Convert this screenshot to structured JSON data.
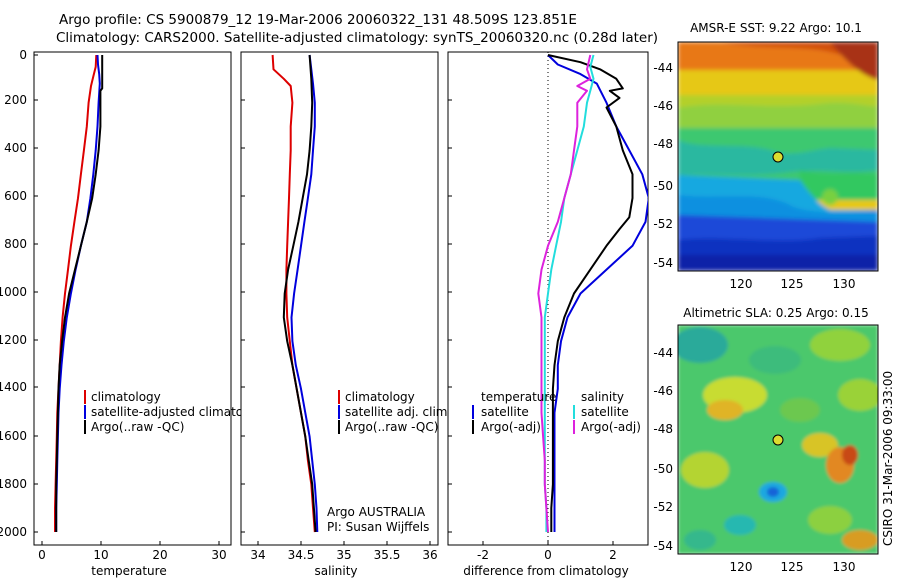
{
  "header": {
    "title_line1": "Argo profile: CS 5900879_12 19-Mar-2006 20060322_131 48.509S 123.851E",
    "title_line2": "Climatology: CARS2000. Satellite-adjusted climatology: synTS_20060320.nc (0.28d later)"
  },
  "footer": {
    "credit": "CSIRO 31-Mar-2006 09:33:00",
    "float_owner_line1": "Argo AUSTRALIA",
    "float_owner_line2": "PI: Susan Wijffels"
  },
  "colors": {
    "red": "#dd0000",
    "blue": "#0000dd",
    "black": "#000000",
    "cyan": "#22dddd",
    "magenta": "#dd22dd"
  },
  "chart_data": [
    {
      "type": "line",
      "id": "temperature",
      "xlabel": "temperature",
      "ylabel": "",
      "xlim": [
        -2,
        32
      ],
      "ylim": [
        0,
        2080
      ],
      "x_ticks": [
        "0",
        "10",
        "20",
        "30"
      ],
      "y_ticks": [
        "0",
        "200",
        "400",
        "600",
        "800",
        "1000",
        "1200",
        "1400",
        "1600",
        "1800",
        "2000"
      ],
      "legend": {
        "position": "lower-right",
        "entries": [
          "climatology",
          "satellite-adjusted climatology",
          "Argo(..raw -QC)"
        ]
      },
      "series": [
        {
          "name": "climatology",
          "color": "red",
          "points": [
            [
              9.2,
              0
            ],
            [
              9.1,
              50
            ],
            [
              8.7,
              90
            ],
            [
              8.3,
              130
            ],
            [
              7.9,
              200
            ],
            [
              7.6,
              300
            ],
            [
              7.1,
              400
            ],
            [
              6.6,
              500
            ],
            [
              6.1,
              600
            ],
            [
              5.5,
              700
            ],
            [
              4.9,
              800
            ],
            [
              4.4,
              900
            ],
            [
              3.9,
              1000
            ],
            [
              3.5,
              1100
            ],
            [
              3.2,
              1200
            ],
            [
              3.0,
              1300
            ],
            [
              2.8,
              1400
            ],
            [
              2.6,
              1500
            ],
            [
              2.5,
              1600
            ],
            [
              2.4,
              1700
            ],
            [
              2.3,
              1800
            ],
            [
              2.2,
              1900
            ],
            [
              2.2,
              2000
            ]
          ]
        },
        {
          "name": "satellite-adjusted climatology",
          "color": "blue",
          "points": [
            [
              9.4,
              0
            ],
            [
              9.5,
              40
            ],
            [
              9.7,
              80
            ],
            [
              9.8,
              120
            ],
            [
              9.6,
              200
            ],
            [
              9.4,
              300
            ],
            [
              9.1,
              400
            ],
            [
              8.7,
              500
            ],
            [
              8.2,
              600
            ],
            [
              7.6,
              700
            ],
            [
              6.6,
              800
            ],
            [
              5.7,
              900
            ],
            [
              4.9,
              1000
            ],
            [
              4.2,
              1100
            ],
            [
              3.7,
              1200
            ],
            [
              3.3,
              1300
            ],
            [
              3.0,
              1400
            ],
            [
              2.8,
              1500
            ],
            [
              2.7,
              1600
            ],
            [
              2.6,
              1700
            ],
            [
              2.5,
              1800
            ],
            [
              2.4,
              1900
            ],
            [
              2.4,
              2000
            ]
          ]
        },
        {
          "name": "Argo(..raw -QC)",
          "color": "black",
          "points": [
            [
              10.2,
              0
            ],
            [
              10.2,
              140
            ],
            [
              9.9,
              150
            ],
            [
              9.9,
              300
            ],
            [
              9.6,
              400
            ],
            [
              9.1,
              500
            ],
            [
              8.5,
              600
            ],
            [
              7.6,
              700
            ],
            [
              6.6,
              800
            ],
            [
              5.6,
              900
            ],
            [
              4.6,
              1000
            ],
            [
              3.9,
              1100
            ],
            [
              3.4,
              1200
            ],
            [
              3.0,
              1300
            ],
            [
              2.8,
              1400
            ],
            [
              2.7,
              1500
            ],
            [
              2.6,
              1600
            ],
            [
              2.5,
              1700
            ],
            [
              2.4,
              1800
            ],
            [
              2.4,
              1900
            ],
            [
              2.4,
              2000
            ]
          ]
        }
      ]
    },
    {
      "type": "line",
      "id": "salinity",
      "xlabel": "salinity",
      "ylabel": "",
      "xlim": [
        33.8,
        36.1
      ],
      "ylim": [
        0,
        2080
      ],
      "x_ticks": [
        "34",
        "34.5",
        "35",
        "35.5",
        "36"
      ],
      "legend": {
        "position": "lower-right",
        "entries": [
          "climatology",
          "satellite adj. clim.",
          "Argo(..raw -QC)"
        ]
      },
      "series": [
        {
          "name": "climatology",
          "color": "red",
          "points": [
            [
              34.17,
              0
            ],
            [
              34.18,
              60
            ],
            [
              34.3,
              100
            ],
            [
              34.38,
              130
            ],
            [
              34.4,
              200
            ],
            [
              34.38,
              300
            ],
            [
              34.38,
              400
            ],
            [
              34.37,
              500
            ],
            [
              34.36,
              600
            ],
            [
              34.35,
              700
            ],
            [
              34.34,
              800
            ],
            [
              34.33,
              900
            ],
            [
              34.33,
              1000
            ],
            [
              34.34,
              1100
            ],
            [
              34.37,
              1200
            ],
            [
              34.4,
              1300
            ],
            [
              34.45,
              1400
            ],
            [
              34.5,
              1500
            ],
            [
              34.55,
              1600
            ],
            [
              34.58,
              1700
            ],
            [
              34.62,
              1800
            ],
            [
              34.64,
              1900
            ],
            [
              34.66,
              2000
            ]
          ]
        },
        {
          "name": "satellite adj. clim.",
          "color": "blue",
          "points": [
            [
              34.6,
              0
            ],
            [
              34.62,
              60
            ],
            [
              34.64,
              120
            ],
            [
              34.66,
              200
            ],
            [
              34.66,
              300
            ],
            [
              34.64,
              400
            ],
            [
              34.62,
              500
            ],
            [
              34.58,
              600
            ],
            [
              34.54,
              700
            ],
            [
              34.5,
              800
            ],
            [
              34.46,
              900
            ],
            [
              34.42,
              1000
            ],
            [
              34.39,
              1100
            ],
            [
              34.4,
              1200
            ],
            [
              34.44,
              1300
            ],
            [
              34.5,
              1400
            ],
            [
              34.55,
              1500
            ],
            [
              34.6,
              1600
            ],
            [
              34.63,
              1700
            ],
            [
              34.66,
              1800
            ],
            [
              34.68,
              1900
            ],
            [
              34.69,
              2000
            ]
          ]
        },
        {
          "name": "Argo(..raw -QC)",
          "color": "black",
          "points": [
            [
              34.6,
              0
            ],
            [
              34.62,
              100
            ],
            [
              34.63,
              200
            ],
            [
              34.62,
              300
            ],
            [
              34.6,
              400
            ],
            [
              34.57,
              500
            ],
            [
              34.52,
              600
            ],
            [
              34.47,
              700
            ],
            [
              34.41,
              800
            ],
            [
              34.35,
              900
            ],
            [
              34.31,
              1000
            ],
            [
              34.3,
              1100
            ],
            [
              34.34,
              1200
            ],
            [
              34.4,
              1300
            ],
            [
              34.45,
              1400
            ],
            [
              34.5,
              1500
            ],
            [
              34.55,
              1600
            ],
            [
              34.59,
              1700
            ],
            [
              34.63,
              1800
            ],
            [
              34.65,
              1900
            ],
            [
              34.67,
              2000
            ]
          ]
        }
      ]
    },
    {
      "type": "line",
      "id": "difference",
      "xlabel": "difference from climatology",
      "ylabel": "",
      "xlim": [
        -3.1,
        3.1
      ],
      "ylim": [
        0,
        2080
      ],
      "x_ticks": [
        "-2",
        "0",
        "2"
      ],
      "zero_line": "dotted",
      "legend": {
        "position": "lower-center",
        "entries": [
          "temperature",
          "satellite",
          "Argo(-adj)",
          "salinity",
          "satellite",
          "Argo(-adj)"
        ]
      },
      "series": [
        {
          "name": "temperature satellite",
          "color": "blue",
          "points": [
            [
              0.0,
              0
            ],
            [
              0.3,
              40
            ],
            [
              1.0,
              80
            ],
            [
              1.5,
              120
            ],
            [
              1.8,
              200
            ],
            [
              2.1,
              300
            ],
            [
              2.5,
              400
            ],
            [
              2.9,
              500
            ],
            [
              3.1,
              600
            ],
            [
              3.0,
              700
            ],
            [
              2.6,
              800
            ],
            [
              1.8,
              900
            ],
            [
              1.0,
              1000
            ],
            [
              0.6,
              1100
            ],
            [
              0.4,
              1200
            ],
            [
              0.3,
              1300
            ],
            [
              0.3,
              1400
            ],
            [
              0.2,
              1500
            ],
            [
              0.2,
              1600
            ],
            [
              0.2,
              1700
            ],
            [
              0.2,
              1800
            ],
            [
              0.2,
              1900
            ],
            [
              0.2,
              2000
            ]
          ]
        },
        {
          "name": "temperature Argo(-adj)",
          "color": "black",
          "points": [
            [
              0.0,
              0
            ],
            [
              1.0,
              30
            ],
            [
              1.6,
              60
            ],
            [
              2.1,
              100
            ],
            [
              2.3,
              140
            ],
            [
              1.9,
              150
            ],
            [
              2.2,
              180
            ],
            [
              1.8,
              220
            ],
            [
              2.1,
              300
            ],
            [
              2.3,
              400
            ],
            [
              2.6,
              500
            ],
            [
              2.6,
              600
            ],
            [
              2.5,
              680
            ],
            [
              2.2,
              730
            ],
            [
              1.8,
              800
            ],
            [
              1.3,
              900
            ],
            [
              0.8,
              1000
            ],
            [
              0.5,
              1100
            ],
            [
              0.3,
              1200
            ],
            [
              0.2,
              1300
            ],
            [
              0.15,
              1400
            ],
            [
              0.15,
              1500
            ],
            [
              0.15,
              1600
            ],
            [
              0.15,
              1700
            ],
            [
              0.15,
              1800
            ],
            [
              0.1,
              1900
            ],
            [
              0.1,
              2000
            ]
          ]
        },
        {
          "name": "salinity satellite",
          "color": "cyan",
          "points": [
            [
              1.4,
              0
            ],
            [
              1.3,
              50
            ],
            [
              1.4,
              100
            ],
            [
              1.3,
              150
            ],
            [
              1.2,
              200
            ],
            [
              1.1,
              300
            ],
            [
              0.9,
              400
            ],
            [
              0.7,
              500
            ],
            [
              0.5,
              600
            ],
            [
              0.4,
              700
            ],
            [
              0.25,
              800
            ],
            [
              0.1,
              900
            ],
            [
              0.0,
              1000
            ],
            [
              -0.1,
              1100
            ],
            [
              -0.1,
              1200
            ],
            [
              -0.1,
              1300
            ],
            [
              -0.1,
              1400
            ],
            [
              -0.1,
              1500
            ],
            [
              -0.1,
              1600
            ],
            [
              -0.1,
              1700
            ],
            [
              -0.1,
              1800
            ],
            [
              -0.05,
              1900
            ],
            [
              -0.05,
              2000
            ]
          ]
        },
        {
          "name": "salinity Argo(-adj)",
          "color": "magenta",
          "points": [
            [
              1.3,
              0
            ],
            [
              1.2,
              60
            ],
            [
              1.3,
              100
            ],
            [
              0.9,
              130
            ],
            [
              1.2,
              150
            ],
            [
              0.9,
              200
            ],
            [
              0.9,
              300
            ],
            [
              0.8,
              400
            ],
            [
              0.7,
              500
            ],
            [
              0.5,
              600
            ],
            [
              0.3,
              700
            ],
            [
              0.0,
              800
            ],
            [
              -0.2,
              900
            ],
            [
              -0.3,
              1000
            ],
            [
              -0.2,
              1100
            ],
            [
              -0.2,
              1200
            ],
            [
              -0.2,
              1300
            ],
            [
              -0.2,
              1400
            ],
            [
              -0.2,
              1500
            ],
            [
              -0.15,
              1600
            ],
            [
              -0.1,
              1700
            ],
            [
              -0.1,
              1800
            ],
            [
              -0.05,
              1900
            ],
            [
              0.0,
              2000
            ]
          ]
        }
      ]
    },
    {
      "type": "heatmap",
      "id": "sst_map",
      "title": "AMSR-E SST: 9.22 Argo: 10.1",
      "x_ticks": [
        "120",
        "125",
        "130"
      ],
      "y_ticks": [
        "-44",
        "-46",
        "-48",
        "-50",
        "-52",
        "-54"
      ],
      "xlim": [
        116,
        131.5
      ],
      "ylim": [
        -55,
        -42.5
      ],
      "argo_position": {
        "lon": 123.851,
        "lat": -48.509
      }
    },
    {
      "type": "heatmap",
      "id": "sla_map",
      "title": "Altimetric SLA: 0.25 Argo: 0.15",
      "x_ticks": [
        "120",
        "125",
        "130"
      ],
      "y_ticks": [
        "-44",
        "-46",
        "-48",
        "-50",
        "-52",
        "-54"
      ],
      "xlim": [
        116,
        131.5
      ],
      "ylim": [
        -55,
        -42.5
      ],
      "argo_position": {
        "lon": 123.851,
        "lat": -48.509
      }
    }
  ]
}
